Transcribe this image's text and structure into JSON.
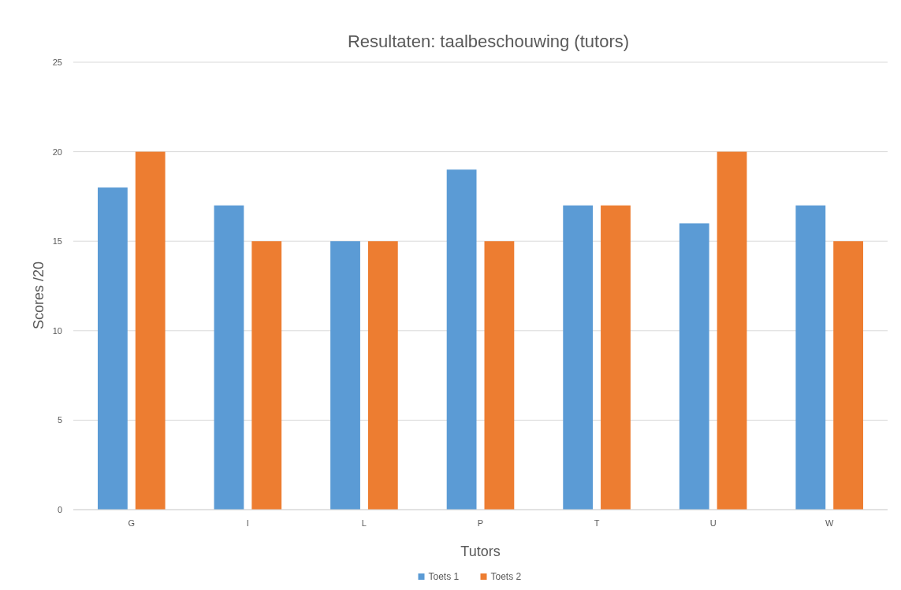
{
  "chart_data": {
    "type": "bar",
    "title": "Resultaten: taalbeschouwing (tutors)",
    "xlabel": "Tutors",
    "ylabel": "Scores /20",
    "categories": [
      "G",
      "I",
      "L",
      "P",
      "T",
      "U",
      "W"
    ],
    "series": [
      {
        "name": "Toets 1",
        "color": "#5b9bd5",
        "values": [
          18,
          17,
          15,
          19,
          17,
          16,
          17
        ]
      },
      {
        "name": "Toets 2",
        "color": "#ed7d31",
        "values": [
          20,
          15,
          15,
          15,
          17,
          20,
          15
        ]
      }
    ],
    "ylim": [
      0,
      25
    ],
    "yticks": [
      0,
      5,
      10,
      15,
      20,
      25
    ],
    "grid": "y",
    "legend": "bottom"
  }
}
